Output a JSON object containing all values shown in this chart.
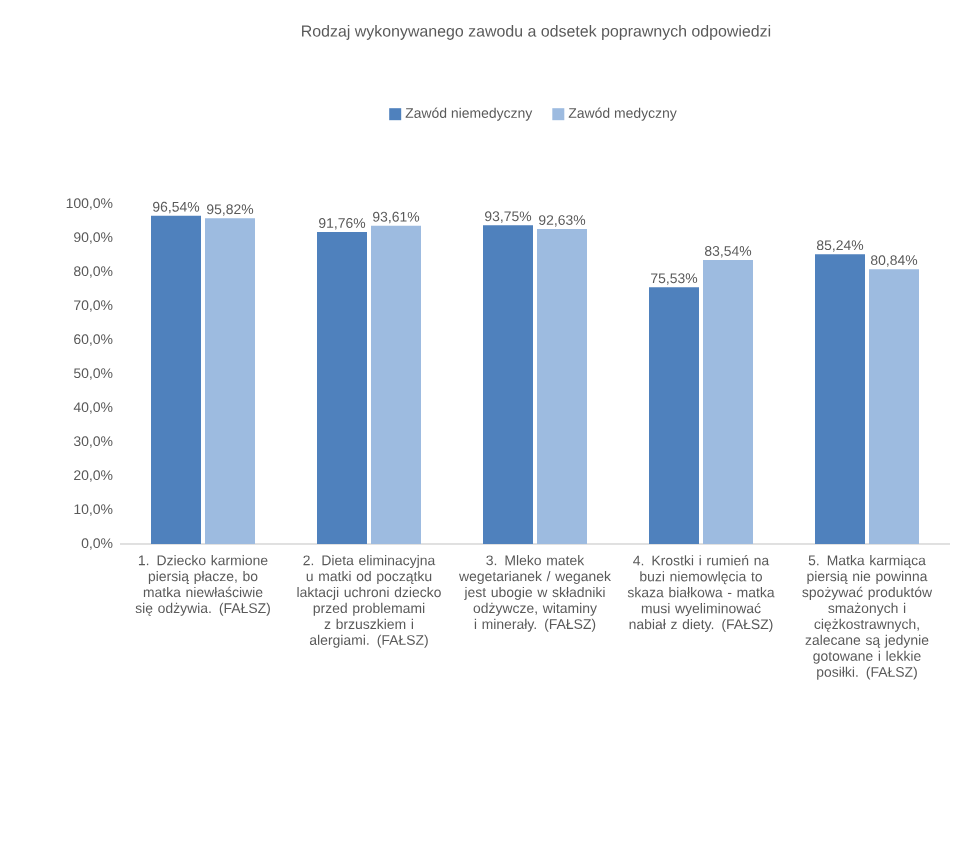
{
  "chart_data": {
    "type": "bar",
    "title": "Rodzaj wykonywanego zawodu a odsetek poprawnych odpowiedzi",
    "categories": [
      "1. Dziecko karmione piersią płacze, bo matka niewłaściwie się odżywia. (FAŁSZ)",
      "2. Dieta eliminacyjna u matki od początku laktacji uchroni dziecko przed problemami  z brzuszkiem i alergiami. (FAŁSZ)",
      "3. Mleko matek wegetarianek / weganek jest ubogie w składniki odżywcze, witaminy i minerały. (FAŁSZ)",
      "4. Krostki i rumień na buzi niemowlęcia to skaza białkowa - matka musi wyeliminować nabiał z diety. (FAŁSZ)",
      "5. Matka karmiąca piersią nie powinna spożywać produktów smażonych i ciężkostrawnych, zalecane są jedynie gotowane i lekkie posiłki. (FAŁSZ)"
    ],
    "series": [
      {
        "name": "Zawód niemedyczny",
        "color": "#4f81bd",
        "values": [
          96.54,
          91.76,
          93.75,
          75.53,
          85.24
        ],
        "value_labels": [
          "96,54%",
          "91,76%",
          "93,75%",
          "75,53%",
          "85,24%"
        ]
      },
      {
        "name": "Zawód medyczny",
        "color": "#9dbbe0",
        "values": [
          95.82,
          93.61,
          92.63,
          83.54,
          80.84
        ],
        "value_labels": [
          "95,82%",
          "93,61%",
          "92,63%",
          "83,54%",
          "80,84%"
        ]
      }
    ],
    "ylim": [
      0,
      100
    ],
    "yticks": [
      {
        "value": 0,
        "label": "0,0%"
      },
      {
        "value": 10,
        "label": "10,0%"
      },
      {
        "value": 20,
        "label": "20,0%"
      },
      {
        "value": 30,
        "label": "30,0%"
      },
      {
        "value": 40,
        "label": "40,0%"
      },
      {
        "value": 50,
        "label": "50,0%"
      },
      {
        "value": 60,
        "label": "60,0%"
      },
      {
        "value": 70,
        "label": "70,0%"
      },
      {
        "value": 80,
        "label": "80,0%"
      },
      {
        "value": 90,
        "label": "90,0%"
      },
      {
        "value": 100,
        "label": "100,0%"
      }
    ],
    "legend": "top",
    "grid": false
  }
}
